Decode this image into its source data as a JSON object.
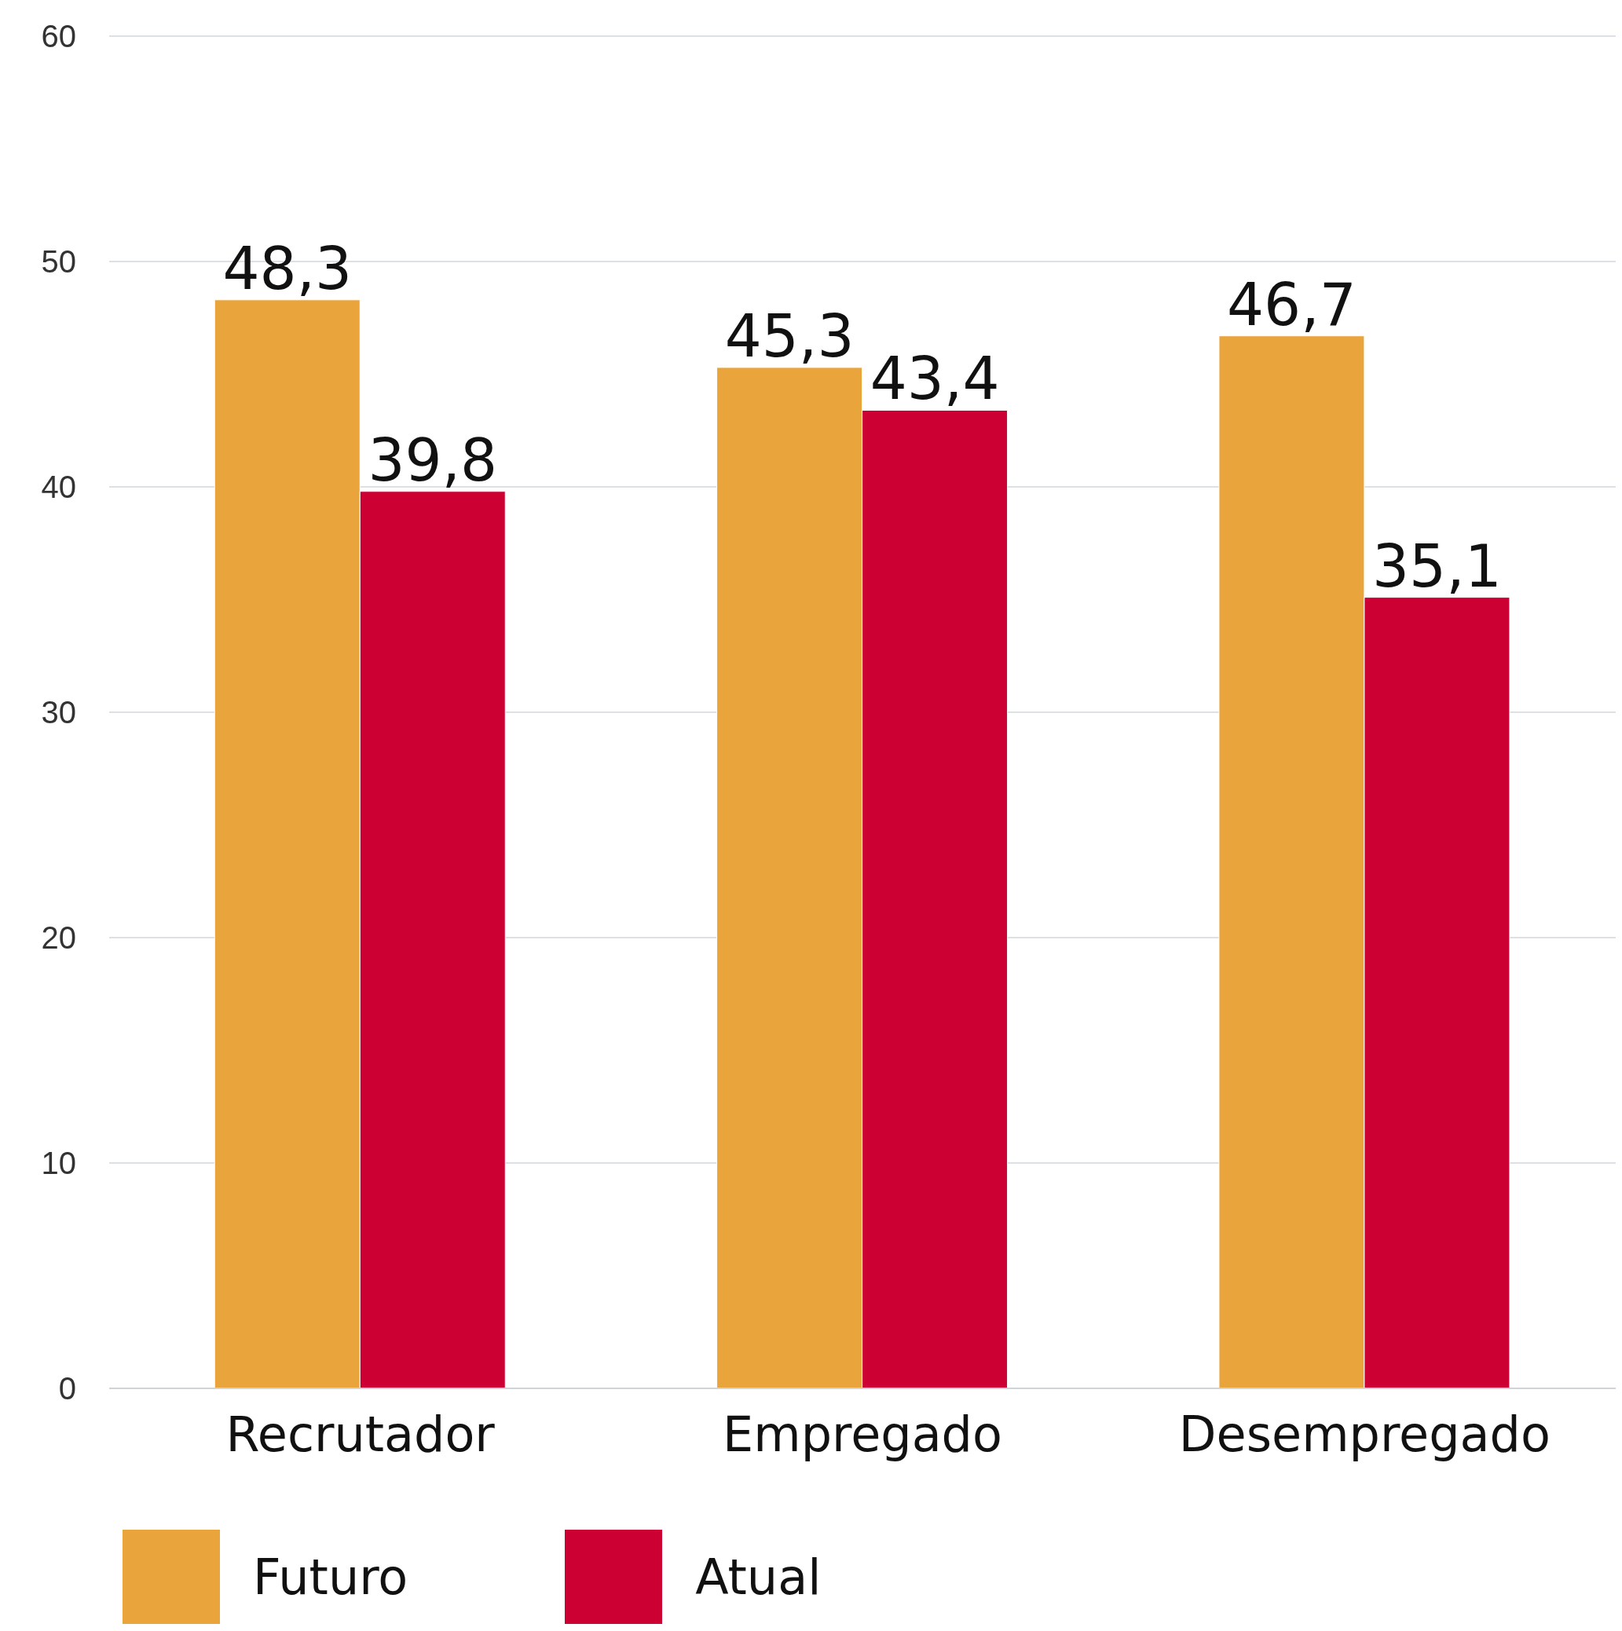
{
  "chart_data": {
    "type": "bar",
    "categories": [
      "Recrutador",
      "Empregado",
      "Desempregado"
    ],
    "series": [
      {
        "name": "Futuro",
        "color": "#eaa43c",
        "values": [
          48.3,
          45.3,
          46.7
        ],
        "value_labels": [
          "48,3",
          "45,3",
          "46,7"
        ]
      },
      {
        "name": "Atual",
        "color": "#cc0033",
        "values": [
          39.8,
          43.4,
          35.1
        ],
        "value_labels": [
          "39,8",
          "43,4",
          "35,1"
        ]
      }
    ],
    "ylim": [
      0,
      60
    ],
    "yticks": [
      0,
      10,
      20,
      30,
      40,
      50,
      60
    ],
    "grid": "y",
    "legend": "bottom left"
  }
}
